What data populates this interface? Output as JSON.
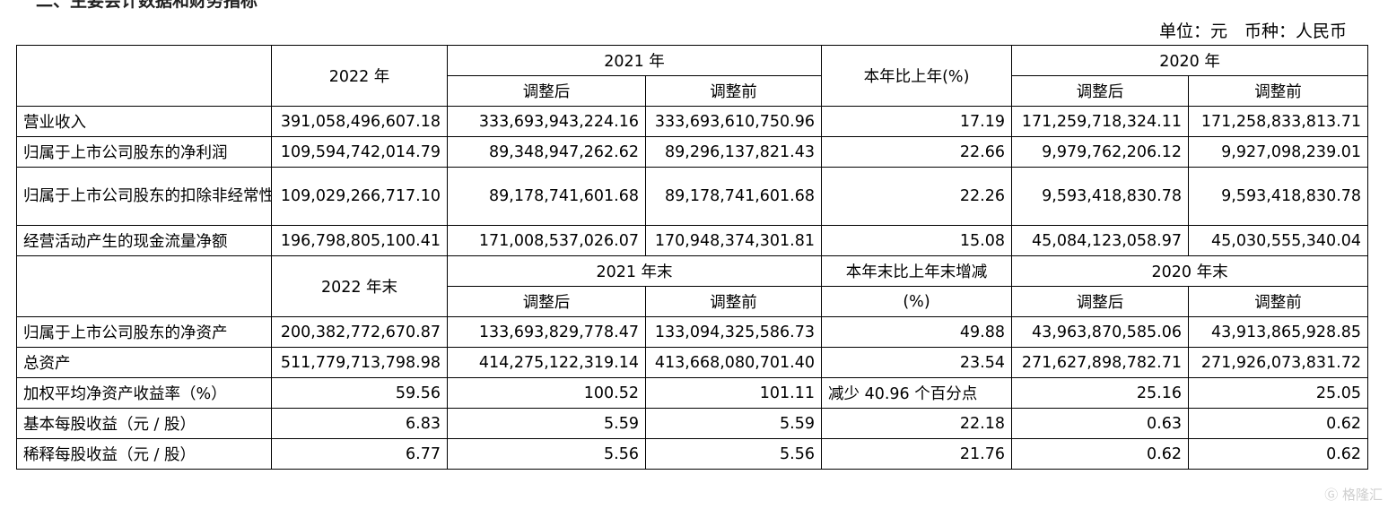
{
  "top_title": "二、主要会计数据和财务指标",
  "unit_line": "单位：元　币种：人民币",
  "header1": {
    "col_2022": "2022 年",
    "col_2021": "2021 年",
    "adj_after": "调整后",
    "adj_before": "调整前",
    "yoy": "本年比上年(%)",
    "col_2020": "2020 年"
  },
  "rows1": [
    {
      "label": "营业收入",
      "v2022": "391,058,496,607.18",
      "v2021a": "333,693,943,224.16",
      "v2021b": "333,693,610,750.96",
      "yoy": "17.19",
      "v2020a": "171,259,718,324.11",
      "v2020b": "171,258,833,813.71"
    },
    {
      "label": "归属于上市公司股东的净利润",
      "v2022": "109,594,742,014.79",
      "v2021a": "89,348,947,262.62",
      "v2021b": "89,296,137,821.43",
      "yoy": "22.66",
      "v2020a": "9,979,762,206.12",
      "v2020b": "9,927,098,239.01"
    },
    {
      "label": "归属于上市公司股东的扣除非经常性损益的净利润",
      "v2022": "109,029,266,717.10",
      "v2021a": "89,178,741,601.68",
      "v2021b": "89,178,741,601.68",
      "yoy": "22.26",
      "v2020a": "9,593,418,830.78",
      "v2020b": "9,593,418,830.78"
    },
    {
      "label": "经营活动产生的现金流量净额",
      "v2022": "196,798,805,100.41",
      "v2021a": "171,008,537,026.07",
      "v2021b": "170,948,374,301.81",
      "yoy": "15.08",
      "v2020a": "45,084,123,058.97",
      "v2020b": "45,030,555,340.04"
    }
  ],
  "header2": {
    "col_2022": "2022 年末",
    "col_2021": "2021 年末",
    "adj_after": "调整后",
    "adj_before": "调整前",
    "yoy_line1": "本年末比上年末增减",
    "yoy_line2": "(%)",
    "col_2020": "2020 年末"
  },
  "rows2": [
    {
      "label": "归属于上市公司股东的净资产",
      "v2022": "200,382,772,670.87",
      "v2021a": "133,693,829,778.47",
      "v2021b": "133,094,325,586.73",
      "yoy": "49.88",
      "v2020a": "43,963,870,585.06",
      "v2020b": "43,913,865,928.85"
    },
    {
      "label": "总资产",
      "v2022": "511,779,713,798.98",
      "v2021a": "414,275,122,319.14",
      "v2021b": "413,668,080,701.40",
      "yoy": "23.54",
      "v2020a": "271,627,898,782.71",
      "v2020b": "271,926,073,831.72"
    },
    {
      "label": "加权平均净资产收益率（%）",
      "v2022": "59.56",
      "v2021a": "100.52",
      "v2021b": "101.11",
      "yoy": "减少 40.96 个百分点",
      "v2020a": "25.16",
      "v2020b": "25.05"
    },
    {
      "label": "基本每股收益（元 / 股）",
      "v2022": "6.83",
      "v2021a": "5.59",
      "v2021b": "5.59",
      "yoy": "22.18",
      "v2020a": "0.63",
      "v2020b": "0.62"
    },
    {
      "label": "稀释每股收益（元 / 股）",
      "v2022": "6.77",
      "v2021a": "5.56",
      "v2021b": "5.56",
      "yoy": "21.76",
      "v2020a": "0.62",
      "v2020b": "0.62"
    }
  ],
  "watermark": "格隆汇"
}
